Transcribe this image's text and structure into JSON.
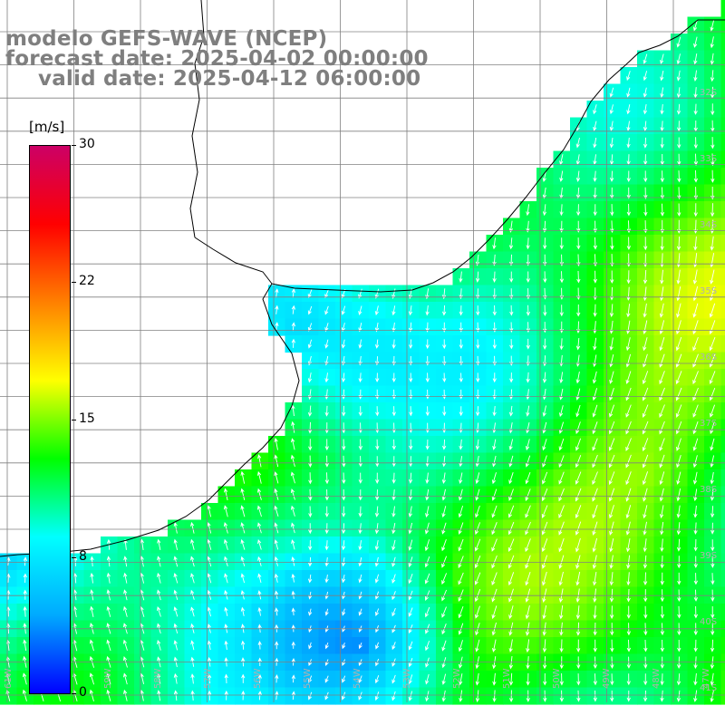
{
  "title": {
    "model": "modelo GEFS-WAVE (NCEP)",
    "forecast": "forecast date: 2025-04-02 00:00:00",
    "valid": "valid date: 2025-04-12 06:00:00"
  },
  "colorbar": {
    "unit": "[m/s]",
    "min": 0,
    "max": 30,
    "ticks": [
      "30",
      "22",
      "15",
      "8",
      "0"
    ],
    "stops": [
      "#0000ff",
      "#00aaff",
      "#00ffff",
      "#00ff00",
      "#ffff00",
      "#ff8000",
      "#ff0000",
      "#cc0066"
    ]
  },
  "map": {
    "lon_labels": [
      "61W",
      "60W",
      "59W",
      "58W",
      "57W",
      "56W",
      "55W",
      "54W",
      "53W",
      "52W",
      "51W",
      "50W",
      "49W",
      "48W",
      "47W"
    ],
    "lat_labels": [
      "32S",
      "33S",
      "34S",
      "35S",
      "36S",
      "37S",
      "38S",
      "39S",
      "40S",
      "41S"
    ],
    "land_color": "#ffffff",
    "grid_color": "#808080"
  }
}
